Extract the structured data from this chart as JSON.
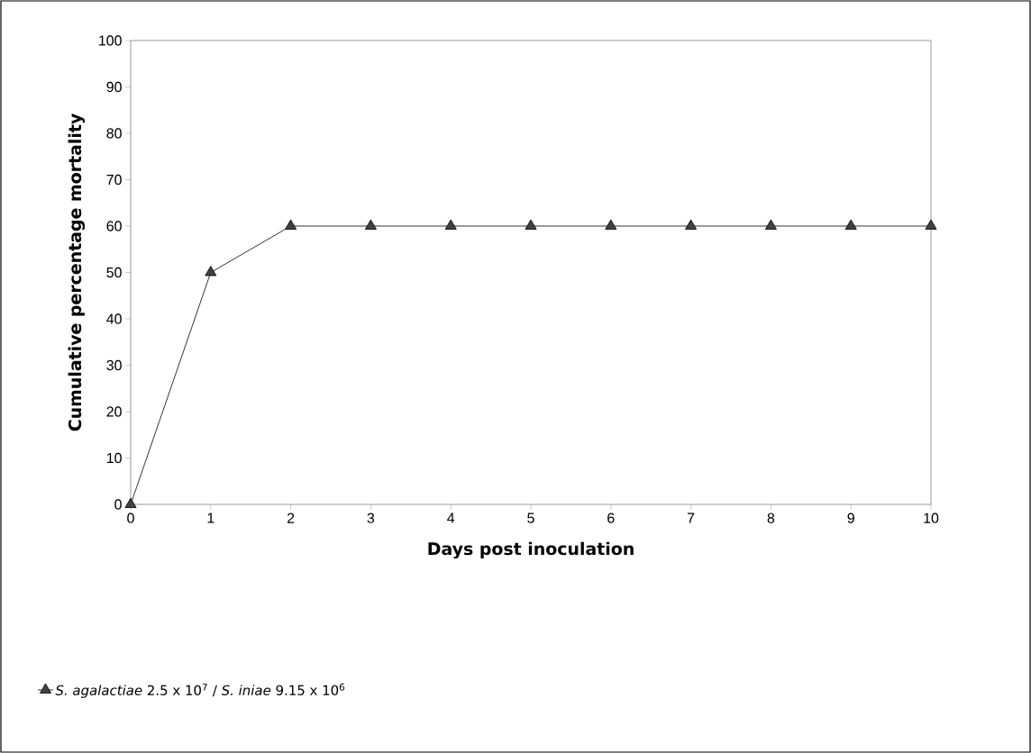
{
  "chart_data": {
    "type": "line",
    "xlabel": "Days post inoculation",
    "ylabel": "Cumulative percentage mortality",
    "x": [
      0,
      1,
      2,
      3,
      4,
      5,
      6,
      7,
      8,
      9,
      10
    ],
    "series": [
      {
        "name": "*S. agalactiae* 2.5 x 10$^{7}$ / *S. iniae* 9.15 x 10$^{6}$",
        "color": "#404040",
        "values": [
          0,
          50,
          60,
          60,
          60,
          60,
          60,
          60,
          60,
          60,
          60
        ]
      }
    ],
    "xlim": [
      0,
      10
    ],
    "ylim": [
      0,
      100
    ],
    "xticks": [
      0,
      1,
      2,
      3,
      4,
      5,
      6,
      7,
      8,
      9,
      10
    ],
    "yticks": [
      0,
      10,
      20,
      30,
      40,
      50,
      60,
      70,
      80,
      90,
      100
    ],
    "grid": false,
    "legend": "bottom",
    "marker": "triangle",
    "line_style": "solid"
  }
}
